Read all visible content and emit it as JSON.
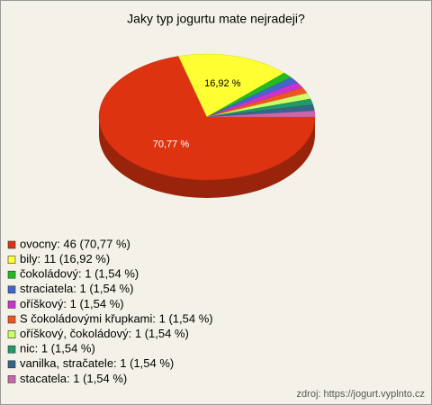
{
  "chart_data": {
    "type": "pie",
    "title": "Jaky typ jogurtu mate nejradeji?",
    "categories": [
      "ovocny",
      "bily",
      "čokoládový",
      "straciatela",
      "oříškový",
      "S čokoládovými křupkami",
      "oříškový, čokoládový",
      "nic",
      "vanilka, stračatele",
      "stacatela"
    ],
    "values": [
      70.77,
      16.92,
      1.54,
      1.54,
      1.54,
      1.54,
      1.54,
      1.54,
      1.54,
      1.54
    ],
    "value_labels": [
      "70,77 %",
      "16,92 %",
      null,
      null,
      null,
      null,
      null,
      null,
      null,
      null
    ],
    "legend_labels": [
      "ovocny: 46 (70,77 %)",
      "bily: 11 (16,92 %)",
      "čokoládový: 1 (1,54 %)",
      "straciatela: 1 (1,54 %)",
      "oříškový: 1 (1,54 %)",
      "S čokoládovými křupkami: 1 (1,54 %)",
      "oříškový, čokoládový: 1 (1,54 %)",
      "nic: 1 (1,54 %)",
      "vanilka, stračatele: 1 (1,54 %)",
      "stacatela: 1 (1,54 %)"
    ],
    "colors": [
      "#dd3311",
      "#ffff33",
      "#22bb22",
      "#4466cc",
      "#cc33cc",
      "#ee5522",
      "#ccff66",
      "#229966",
      "#336688",
      "#cc66aa"
    ],
    "source": "zdroj: https://jogurt.vyplnto.cz"
  }
}
